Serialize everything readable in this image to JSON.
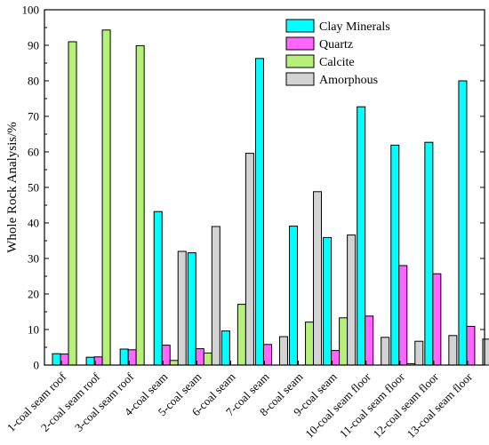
{
  "chart_data": {
    "type": "bar",
    "ylabel": "Whole Rock Analysis/%",
    "xlabel": "",
    "ylim": [
      0,
      100
    ],
    "yticks": [
      0,
      10,
      20,
      30,
      40,
      50,
      60,
      70,
      80,
      90,
      100
    ],
    "grid": false,
    "legend_position": "top-right",
    "categories": [
      "1-coal seam roof",
      "2-coal seam roof",
      "3-coal seam roof",
      "4-coal seam",
      "5-coal seam",
      "6-coal seam",
      "7-coal seam",
      "8-coal seam",
      "9-coal seam",
      "10-coal seam floor",
      "11-coal seam floor",
      "12-coal seam floor",
      "13-coal seam floor"
    ],
    "series": [
      {
        "name": "Clay Minerals",
        "color": "#00ffff",
        "values": [
          3.2,
          2.2,
          4.5,
          43.2,
          31.6,
          9.6,
          86.3,
          39.1,
          35.9,
          72.7,
          61.9,
          62.7,
          80.0
        ]
      },
      {
        "name": "Quartz",
        "color": "#ff66ff",
        "values": [
          3.1,
          2.3,
          4.3,
          5.6,
          4.6,
          0,
          5.8,
          0,
          4.1,
          13.8,
          28.0,
          25.7,
          10.9
        ]
      },
      {
        "name": "Calcite",
        "color": "#b5f07a",
        "values": [
          91.0,
          94.3,
          89.9,
          1.3,
          3.4,
          17.1,
          0,
          12.1,
          13.3,
          0,
          0.4,
          0,
          0
        ]
      },
      {
        "name": "Amorphous",
        "color": "#d3d3d3",
        "values": [
          0,
          0,
          0,
          32.0,
          39.0,
          59.6,
          8.0,
          48.8,
          36.6,
          7.8,
          6.7,
          8.3,
          7.3
        ]
      }
    ]
  }
}
